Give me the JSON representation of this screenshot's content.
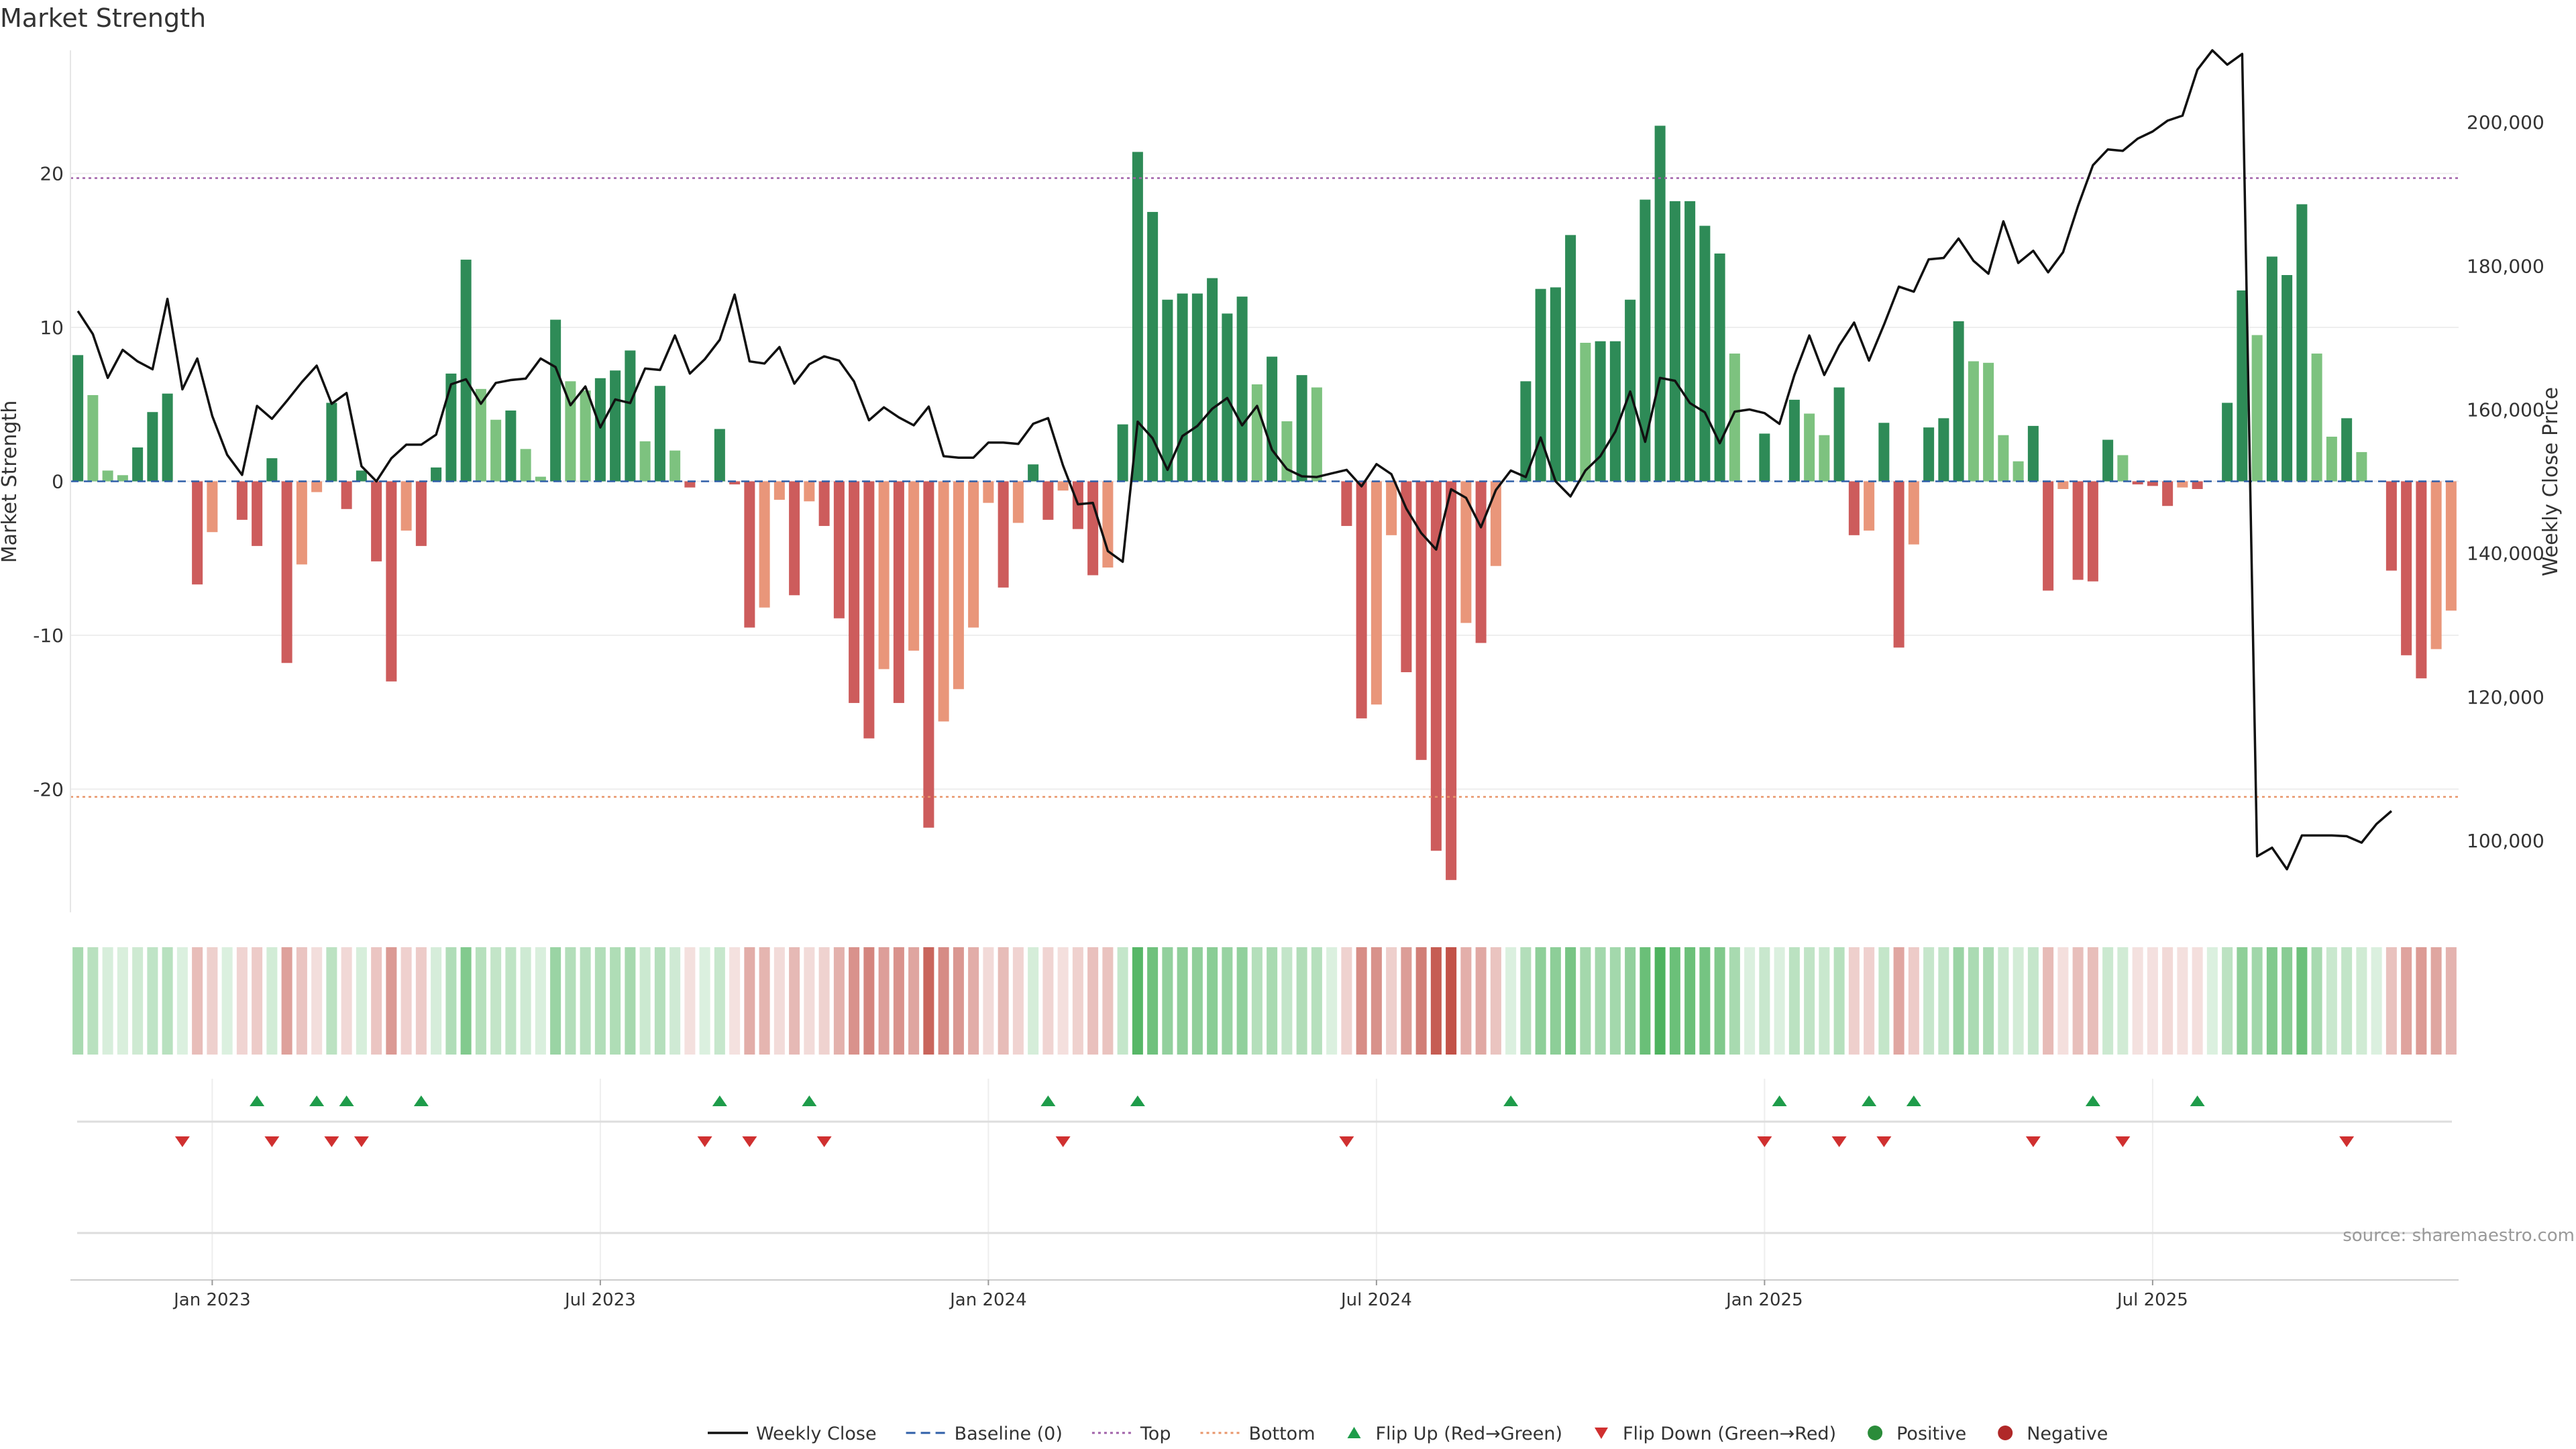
{
  "chart_data": {
    "type": "bar",
    "title": "Market Strength",
    "ylabel_left": "Market Strength",
    "ylabel_right": "Weekly Close Price",
    "xlabel": "",
    "ylim_left": [
      -28,
      28
    ],
    "ylim_right": [
      90000,
      210000
    ],
    "left_ticks": [
      "20",
      "10",
      "0",
      "-10",
      "-20"
    ],
    "left_tick_values": [
      20,
      10,
      0,
      -10,
      -20
    ],
    "right_ticks": [
      "200,000",
      "180,000",
      "160,000",
      "140,000",
      "120,000",
      "100,000"
    ],
    "right_tick_values": [
      200000,
      180000,
      160000,
      140000,
      120000,
      100000
    ],
    "x_ticks": [
      "Jan 2023",
      "Jul 2023",
      "Jan 2024",
      "Jul 2024",
      "Jan 2025",
      "Jul 2025"
    ],
    "x_tick_week_index": [
      9,
      35,
      61,
      87,
      113,
      139
    ],
    "top_threshold": 19.7,
    "bottom_threshold": -20.5,
    "strength": [
      8.2,
      5.6,
      0.7,
      0.4,
      2.2,
      4.5,
      5.7,
      0,
      -6.7,
      -3.3,
      0,
      -2.5,
      -4.2,
      1.5,
      -11.8,
      -5.4,
      -0.7,
      5.1,
      -1.8,
      0.7,
      -5.2,
      -13.0,
      -3.2,
      -4.2,
      0.9,
      7.0,
      14.4,
      6.0,
      4.0,
      4.6,
      2.1,
      0.3,
      10.5,
      6.5,
      5.9,
      6.7,
      7.2,
      8.5,
      2.6,
      6.2,
      2.0,
      -0.4,
      0,
      3.4,
      -0.2,
      -9.5,
      -8.2,
      -1.2,
      -7.4,
      -1.3,
      -2.9,
      -8.9,
      -14.4,
      -16.7,
      -12.2,
      -14.4,
      -11.0,
      -22.5,
      -15.6,
      -13.5,
      -9.5,
      -1.4,
      -6.9,
      -2.7,
      1.1,
      -2.5,
      -0.6,
      -3.1,
      -6.1,
      -5.6,
      3.7,
      21.4,
      17.5,
      11.8,
      12.2,
      12.2,
      13.2,
      10.9,
      12.0,
      6.3,
      8.1,
      3.9,
      6.9,
      6.1,
      0,
      -2.9,
      -15.4,
      -14.5,
      -3.5,
      -12.4,
      -18.1,
      -24.0,
      -25.9,
      -9.2,
      -10.5,
      -5.5,
      0,
      6.5,
      12.5,
      12.6,
      16.0,
      9.0,
      9.1,
      9.1,
      11.8,
      18.3,
      23.1,
      18.2,
      18.2,
      16.6,
      14.8,
      8.3,
      0,
      3.1,
      0,
      5.3,
      4.4,
      3.0,
      6.1,
      -3.5,
      -3.2,
      3.8,
      -10.8,
      -4.1,
      3.5,
      4.1,
      10.4,
      7.8,
      7.7,
      3.0,
      1.3,
      3.6,
      -7.1,
      -0.5,
      -6.4,
      -6.5,
      2.7,
      1.7,
      -0.2,
      -0.3,
      -1.6,
      -0.4,
      -0.5,
      0,
      5.1,
      12.4,
      9.5,
      14.6,
      13.4,
      18.0,
      8.3,
      2.9,
      4.1,
      1.9,
      0,
      -5.8,
      -11.3,
      -12.8,
      -10.9,
      -8.4
    ],
    "weekly_close": [
      173700,
      170500,
      164400,
      168300,
      166700,
      165600,
      175400,
      162800,
      167100,
      159100,
      153700,
      150900,
      160500,
      158700,
      161200,
      163800,
      166100,
      160800,
      162300,
      152100,
      150000,
      153200,
      155100,
      155100,
      156500,
      163500,
      164200,
      160800,
      163700,
      164100,
      164300,
      167100,
      165900,
      160600,
      163200,
      157500,
      161400,
      160900,
      165700,
      165500,
      170300,
      165000,
      167000,
      169700,
      176000,
      166700,
      166400,
      168700,
      163600,
      166300,
      167400,
      166800,
      163900,
      158500,
      160300,
      158900,
      157800,
      160400,
      153500,
      153300,
      153300,
      155400,
      155400,
      155200,
      158000,
      158800,
      152200,
      146800,
      147000,
      140300,
      138800,
      158300,
      156000,
      151600,
      156300,
      157700,
      160100,
      161600,
      157800,
      160500,
      154400,
      151700,
      150700,
      150600,
      151100,
      151600,
      149300,
      152400,
      151000,
      146200,
      142800,
      140500,
      148900,
      147700,
      143600,
      148800,
      151500,
      150600,
      156100,
      150000,
      147900,
      151500,
      153500,
      156900,
      162500,
      155500,
      164400,
      164000,
      160900,
      159600,
      155300,
      159700,
      160000,
      159500,
      158000,
      164800,
      170300,
      164800,
      168900,
      172100,
      166800,
      171800,
      177100,
      176400,
      180900,
      181100,
      183800,
      180700,
      178900,
      186200,
      180400,
      182100,
      179100,
      181900,
      188300,
      194000,
      196200,
      196000,
      197700,
      198700,
      200200,
      200900,
      207300,
      210000,
      208000,
      209500,
      97800,
      99000,
      96000,
      100700,
      100700,
      100700,
      100600,
      99700,
      102300,
      104100
    ],
    "flip_up_week_index": [
      12,
      16,
      18,
      23,
      43,
      49,
      65,
      71,
      96,
      114,
      120,
      123,
      135,
      142
    ],
    "flip_down_week_index": [
      7,
      13,
      17,
      19,
      42,
      45,
      50,
      66,
      85,
      113,
      118,
      121,
      131,
      137,
      152
    ],
    "heatmap_strength": "same as strength series (color intensity by magnitude, green positive, red negative)",
    "source_note": "source: sharemaestro.com",
    "legend": [
      {
        "label": "Weekly Close",
        "kind": "line",
        "color": "#111111"
      },
      {
        "label": "Baseline (0)",
        "kind": "dashed",
        "color": "#2f5fa8"
      },
      {
        "label": "Top",
        "kind": "dotted",
        "color": "#a060a8"
      },
      {
        "label": "Bottom",
        "kind": "dotted",
        "color": "#e8956a"
      },
      {
        "label": "Flip Up (Red→Green)",
        "kind": "triangle-up",
        "color": "#1e9c4a"
      },
      {
        "label": "Flip Down (Green→Red)",
        "kind": "triangle-down",
        "color": "#d03030"
      },
      {
        "label": "Positive",
        "kind": "dot",
        "color": "#2b8c3a"
      },
      {
        "label": "Negative",
        "kind": "dot",
        "color": "#b02828"
      }
    ],
    "colors": {
      "pos_strong": "#2e8b57",
      "pos_light": "#7dc27f",
      "neg_strong": "#cd5c5c",
      "neg_light": "#e9967a",
      "close_line": "#111111",
      "top_line": "#a060a8",
      "bottom_line": "#e8956a",
      "flip_up": "#1e9c4a",
      "flip_down": "#d03030"
    }
  }
}
